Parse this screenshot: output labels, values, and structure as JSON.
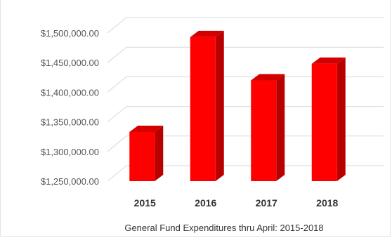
{
  "chart_data": {
    "type": "bar",
    "style": "3d-column",
    "categories": [
      "2015",
      "2016",
      "2017",
      "2018"
    ],
    "values": [
      1333000,
      1493000,
      1420000,
      1448000
    ],
    "xlabel": "General Fund Expenditures thru April: 2015-2018",
    "ylabel": "",
    "ylim": [
      1250000,
      1500000
    ],
    "yticks": [
      1250000,
      1300000,
      1350000,
      1400000,
      1450000,
      1500000
    ],
    "ytick_labels": [
      "$1,250,000.00",
      "$1,300,000.00",
      "$1,350,000.00",
      "$1,400,000.00",
      "$1,450,000.00",
      "$1,500,000.00"
    ],
    "grid": true,
    "legend": "none",
    "colors": {
      "bar_front": "#ff0000",
      "bar_side": "#b80000",
      "bar_top": "#d40000",
      "grid": "#d9d9d9"
    }
  }
}
